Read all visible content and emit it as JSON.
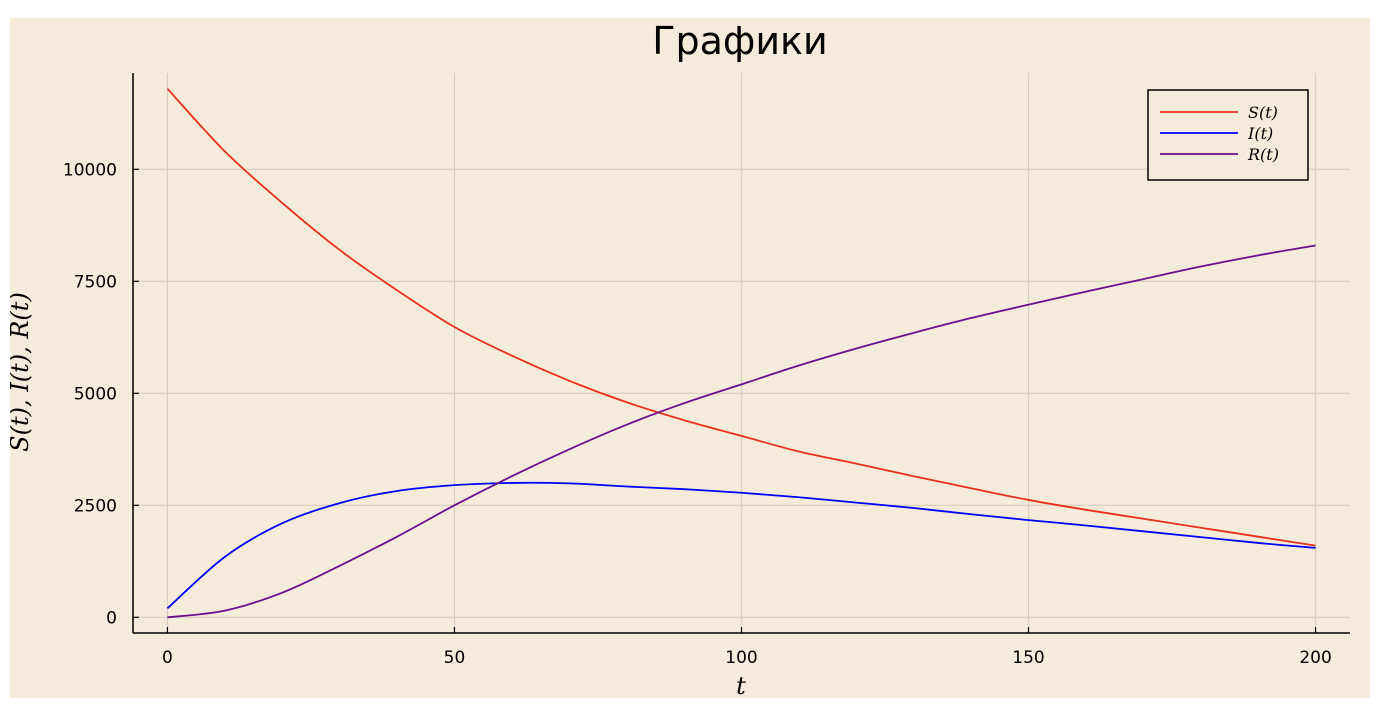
{
  "colors": {
    "background": "#f5ebdb",
    "grid": "#d8cfc0",
    "axis": "#000000",
    "S": "#e8301f",
    "I": "#0000ff",
    "R": "#6a0f8e"
  },
  "chart_data": {
    "type": "line",
    "title": "Графики",
    "xlabel": "t",
    "ylabel": "S(t), I(t), R(t)",
    "xlim": [
      -6,
      206
    ],
    "ylim": [
      -350,
      12150
    ],
    "xticks": [
      0,
      50,
      100,
      150,
      200
    ],
    "xtick_labels": [
      "0",
      "50",
      "100",
      "150",
      "200"
    ],
    "yticks": [
      0,
      2500,
      5000,
      7500,
      10000
    ],
    "ytick_labels": [
      "0",
      "2500",
      "5000",
      "7500",
      "10000"
    ],
    "grid": true,
    "legend_position": "top-right",
    "x": [
      0,
      10,
      20,
      30,
      40,
      50,
      60,
      70,
      80,
      90,
      100,
      110,
      120,
      130,
      140,
      150,
      160,
      170,
      180,
      190,
      200
    ],
    "series": [
      {
        "name": "S(t)",
        "color_key": "S",
        "values": [
          11800,
          10400,
          9250,
          8200,
          7300,
          6480,
          5840,
          5280,
          4800,
          4400,
          4050,
          3700,
          3430,
          3150,
          2880,
          2620,
          2400,
          2200,
          2000,
          1800,
          1600
        ]
      },
      {
        "name": "I(t)",
        "color_key": "I",
        "values": [
          200,
          1350,
          2100,
          2550,
          2820,
          2950,
          3000,
          2990,
          2920,
          2860,
          2780,
          2680,
          2560,
          2440,
          2300,
          2170,
          2050,
          1920,
          1790,
          1660,
          1550
        ]
      },
      {
        "name": "R(t)",
        "color_key": "R",
        "values": [
          0,
          150,
          550,
          1150,
          1800,
          2500,
          3150,
          3750,
          4300,
          4780,
          5200,
          5620,
          6000,
          6350,
          6680,
          6980,
          7270,
          7550,
          7830,
          8080,
          8300
        ]
      }
    ]
  }
}
